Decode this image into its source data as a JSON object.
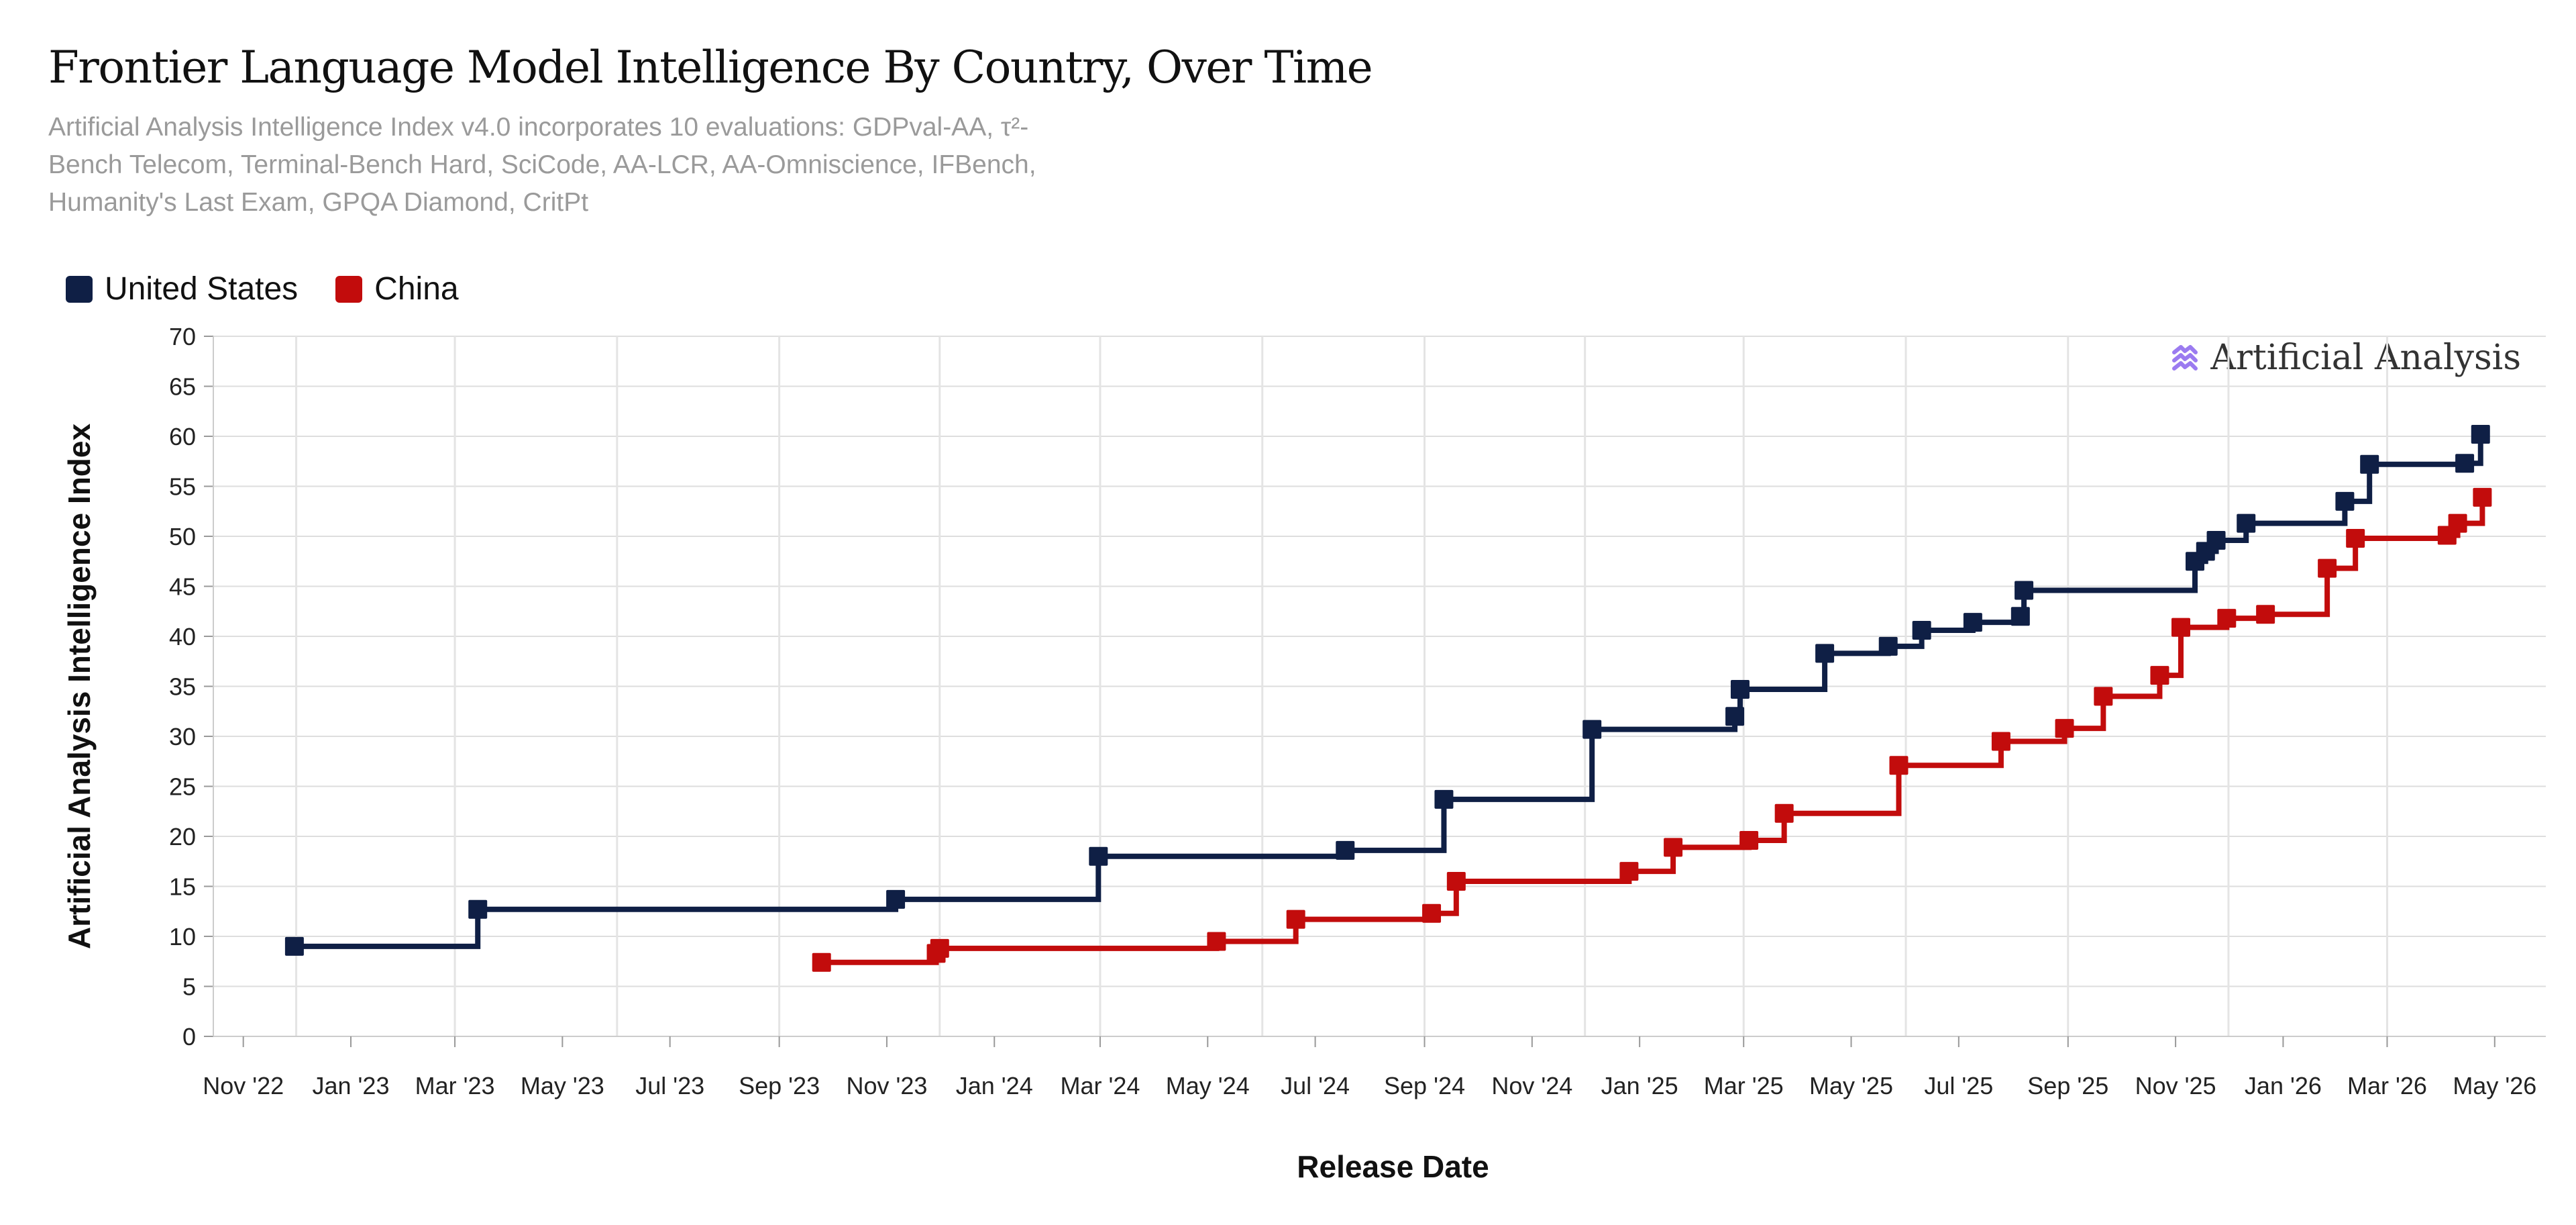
{
  "header": {
    "title": "Frontier Language Model Intelligence By Country, Over Time",
    "subtitle_lines": [
      "Artificial Analysis Intelligence Index v4.0 incorporates 10 evaluations: GDPval-AA, τ²-",
      "Bench Telecom, Terminal-Bench Hard, SciCode, AA-LCR, AA-Omniscience, IFBench,",
      "Humanity's Last Exam, GPQA Diamond, CritPt"
    ]
  },
  "watermark": {
    "text": "Artificial Analysis",
    "icon": "artificial-analysis-logo-icon",
    "color": "#9b7bf0"
  },
  "chart_data": {
    "type": "line",
    "step": true,
    "marker": "square",
    "xlabel": "Release Date",
    "ylabel": "Artificial Analysis Intelligence Index",
    "ylim": [
      0,
      70
    ],
    "yticks": [
      0,
      5,
      10,
      15,
      20,
      25,
      30,
      35,
      40,
      45,
      50,
      55,
      60,
      65,
      70
    ],
    "xlim": [
      "2022-10-15",
      "2026-05-30"
    ],
    "xticks": [
      {
        "date": "2022-11-01",
        "label": "Nov '22"
      },
      {
        "date": "2023-01-01",
        "label": "Jan '23"
      },
      {
        "date": "2023-03-01",
        "label": "Mar '23"
      },
      {
        "date": "2023-05-01",
        "label": "May '23"
      },
      {
        "date": "2023-07-01",
        "label": "Jul '23"
      },
      {
        "date": "2023-09-01",
        "label": "Sep '23"
      },
      {
        "date": "2023-11-01",
        "label": "Nov '23"
      },
      {
        "date": "2024-01-01",
        "label": "Jan '24"
      },
      {
        "date": "2024-03-01",
        "label": "Mar '24"
      },
      {
        "date": "2024-05-01",
        "label": "May '24"
      },
      {
        "date": "2024-07-01",
        "label": "Jul '24"
      },
      {
        "date": "2024-09-01",
        "label": "Sep '24"
      },
      {
        "date": "2024-11-01",
        "label": "Nov '24"
      },
      {
        "date": "2025-01-01",
        "label": "Jan '25"
      },
      {
        "date": "2025-03-01",
        "label": "Mar '25"
      },
      {
        "date": "2025-05-01",
        "label": "May '25"
      },
      {
        "date": "2025-07-01",
        "label": "Jul '25"
      },
      {
        "date": "2025-09-01",
        "label": "Sep '25"
      },
      {
        "date": "2025-11-01",
        "label": "Nov '25"
      },
      {
        "date": "2026-01-01",
        "label": "Jan '26"
      },
      {
        "date": "2026-03-01",
        "label": "Mar '26"
      },
      {
        "date": "2026-05-01",
        "label": "May '26"
      }
    ],
    "year_gridlines": [
      "2023-01-01",
      "2024-01-01",
      "2025-01-01",
      "2026-01-01"
    ],
    "quarter_gridlines": [
      "2022-12-01",
      "2023-03-01",
      "2023-06-01",
      "2023-09-01",
      "2023-12-01",
      "2024-03-01",
      "2024-06-01",
      "2024-09-01",
      "2024-12-01",
      "2025-03-01",
      "2025-06-01",
      "2025-09-01",
      "2025-12-01",
      "2026-03-01"
    ],
    "grid": true,
    "legend_position": "top-left",
    "series": [
      {
        "name": "United States",
        "color": "#0f1f45",
        "points": [
          {
            "x": "2022-11-30",
            "y": 9.0
          },
          {
            "x": "2023-03-14",
            "y": 12.7
          },
          {
            "x": "2023-11-06",
            "y": 13.7
          },
          {
            "x": "2024-02-29",
            "y": 18.0
          },
          {
            "x": "2024-07-18",
            "y": 18.6
          },
          {
            "x": "2024-09-12",
            "y": 23.7
          },
          {
            "x": "2024-12-05",
            "y": 30.7
          },
          {
            "x": "2025-02-24",
            "y": 32.0
          },
          {
            "x": "2025-02-27",
            "y": 34.7
          },
          {
            "x": "2025-04-16",
            "y": 38.3
          },
          {
            "x": "2025-05-22",
            "y": 39.0
          },
          {
            "x": "2025-06-10",
            "y": 40.6
          },
          {
            "x": "2025-07-09",
            "y": 41.4
          },
          {
            "x": "2025-08-05",
            "y": 42.0
          },
          {
            "x": "2025-08-07",
            "y": 44.6
          },
          {
            "x": "2025-11-12",
            "y": 47.5
          },
          {
            "x": "2025-11-18",
            "y": 48.5
          },
          {
            "x": "2025-11-24",
            "y": 49.6
          },
          {
            "x": "2025-12-11",
            "y": 51.3
          },
          {
            "x": "2026-02-05",
            "y": 53.5
          },
          {
            "x": "2026-02-19",
            "y": 57.2
          },
          {
            "x": "2026-04-14",
            "y": 57.3
          },
          {
            "x": "2026-04-23",
            "y": 60.2
          }
        ]
      },
      {
        "name": "China",
        "color": "#c20c0c",
        "points": [
          {
            "x": "2023-09-25",
            "y": 7.4
          },
          {
            "x": "2023-11-29",
            "y": 8.3
          },
          {
            "x": "2023-12-01",
            "y": 8.8
          },
          {
            "x": "2024-05-06",
            "y": 9.5
          },
          {
            "x": "2024-06-20",
            "y": 11.7
          },
          {
            "x": "2024-09-05",
            "y": 12.3
          },
          {
            "x": "2024-09-19",
            "y": 15.5
          },
          {
            "x": "2024-12-26",
            "y": 16.5
          },
          {
            "x": "2025-01-20",
            "y": 18.9
          },
          {
            "x": "2025-03-04",
            "y": 19.6
          },
          {
            "x": "2025-03-24",
            "y": 22.3
          },
          {
            "x": "2025-05-28",
            "y": 27.1
          },
          {
            "x": "2025-07-25",
            "y": 29.5
          },
          {
            "x": "2025-08-30",
            "y": 30.8
          },
          {
            "x": "2025-09-21",
            "y": 34.0
          },
          {
            "x": "2025-10-23",
            "y": 36.1
          },
          {
            "x": "2025-11-04",
            "y": 40.9
          },
          {
            "x": "2025-11-30",
            "y": 41.8
          },
          {
            "x": "2025-12-22",
            "y": 42.2
          },
          {
            "x": "2026-01-26",
            "y": 46.8
          },
          {
            "x": "2026-02-11",
            "y": 49.8
          },
          {
            "x": "2026-04-04",
            "y": 50.1
          },
          {
            "x": "2026-04-10",
            "y": 51.3
          },
          {
            "x": "2026-04-24",
            "y": 53.9
          }
        ]
      }
    ]
  }
}
